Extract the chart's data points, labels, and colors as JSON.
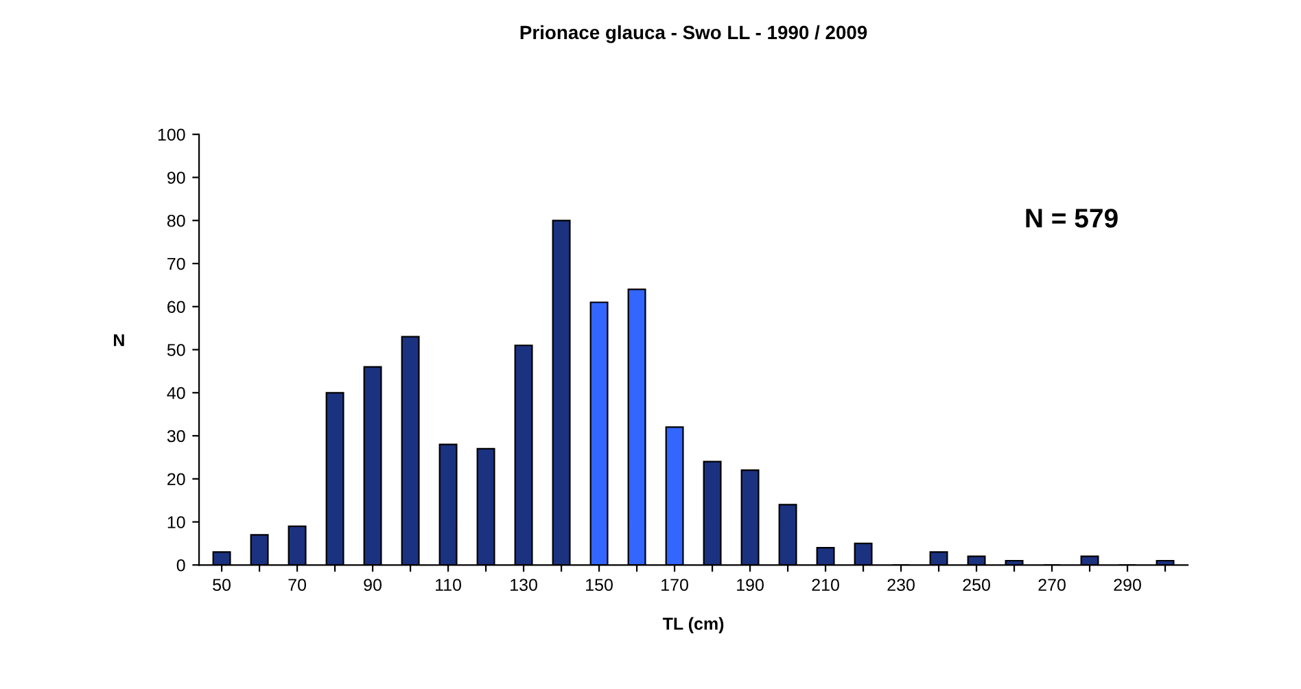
{
  "chart_data": {
    "type": "bar",
    "title": "Prionace glauca - Swo LL - 1990 / 2009",
    "xlabel": "TL (cm)",
    "ylabel": "N",
    "annotations": [
      "N = 579"
    ],
    "categories": [
      "50",
      null,
      "70",
      null,
      "90",
      null,
      "110",
      null,
      "130",
      null,
      "150",
      null,
      "170",
      null,
      "190",
      null,
      "210",
      null,
      "230",
      null,
      "250",
      null,
      "270",
      null,
      "290",
      null
    ],
    "values": [
      3,
      7,
      9,
      40,
      46,
      53,
      28,
      27,
      51,
      80,
      61,
      64,
      32,
      24,
      22,
      14,
      4,
      5,
      0,
      3,
      2,
      1,
      0,
      2,
      0,
      1
    ],
    "colors": [
      "#1b3280",
      "#1b3280",
      "#1b3280",
      "#1b3280",
      "#1b3280",
      "#1b3280",
      "#1b3280",
      "#1b3280",
      "#1b3280",
      "#1b3280",
      "#3366ff",
      "#3366ff",
      "#3366ff",
      "#1b3280",
      "#1b3280",
      "#1b3280",
      "#1b3280",
      "#1b3280",
      "#1b3280",
      "#1b3280",
      "#1b3280",
      "#1b3280",
      "#1b3280",
      "#1b3280",
      "#1b3280",
      "#1b3280"
    ],
    "ylim": [
      0,
      100
    ],
    "yticks": [
      0,
      10,
      20,
      30,
      40,
      50,
      60,
      70,
      80,
      90,
      100
    ],
    "grid": false
  }
}
